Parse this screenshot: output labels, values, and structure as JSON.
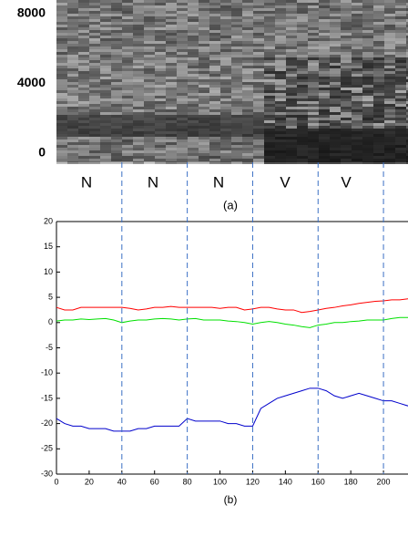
{
  "chart_data": [
    {
      "type": "spectrogram",
      "ylim": [
        0,
        8000
      ],
      "yticks": [
        0,
        4000,
        8000
      ],
      "categories": [
        "N",
        "N",
        "N",
        "V",
        "V"
      ],
      "caption": "(a)"
    },
    {
      "type": "line",
      "caption": "(b)",
      "xlim": [
        0,
        215
      ],
      "ylim": [
        -30,
        20
      ],
      "xticks": [
        0,
        20,
        40,
        60,
        80,
        100,
        120,
        140,
        160,
        180,
        200
      ],
      "yticks": [
        -30,
        -25,
        -20,
        -15,
        -10,
        -5,
        0,
        5,
        10,
        15,
        20
      ],
      "vlines": [
        40,
        80,
        120,
        160,
        200
      ],
      "x": [
        0,
        5,
        10,
        15,
        20,
        25,
        30,
        35,
        40,
        45,
        50,
        55,
        60,
        65,
        70,
        75,
        80,
        85,
        90,
        95,
        100,
        105,
        110,
        115,
        120,
        125,
        130,
        135,
        140,
        145,
        150,
        155,
        160,
        165,
        170,
        175,
        180,
        185,
        190,
        195,
        200,
        205,
        210,
        215
      ],
      "series": [
        {
          "color": "#ff0000",
          "values": [
            3,
            2.5,
            2.5,
            3,
            3,
            3,
            3,
            3,
            3,
            2.8,
            2.5,
            2.7,
            3,
            3,
            3.2,
            3,
            3,
            3,
            3,
            3,
            2.8,
            3,
            3,
            2.5,
            2.7,
            3,
            3,
            2.7,
            2.5,
            2.5,
            2,
            2.2,
            2.5,
            2.8,
            3,
            3.3,
            3.5,
            3.8,
            4,
            4.2,
            4.3,
            4.5,
            4.5,
            4.7
          ]
        },
        {
          "color": "#00e000",
          "values": [
            0.3,
            0.5,
            0.5,
            0.7,
            0.6,
            0.7,
            0.8,
            0.5,
            0,
            0.3,
            0.5,
            0.5,
            0.7,
            0.8,
            0.7,
            0.5,
            0.7,
            0.8,
            0.5,
            0.5,
            0.5,
            0.3,
            0.2,
            0,
            -0.3,
            0,
            0.2,
            0,
            -0.3,
            -0.5,
            -0.8,
            -1,
            -0.5,
            -0.3,
            0,
            0,
            0.2,
            0.3,
            0.5,
            0.5,
            0.5,
            0.8,
            1,
            1
          ]
        },
        {
          "color": "#0000cc",
          "values": [
            -19,
            -20,
            -20.5,
            -20.5,
            -21,
            -21,
            -21,
            -21.5,
            -21.5,
            -21.5,
            -21,
            -21,
            -20.5,
            -20.5,
            -20.5,
            -20.5,
            -19,
            -19.5,
            -19.5,
            -19.5,
            -19.5,
            -20,
            -20,
            -20.5,
            -20.5,
            -17,
            -16,
            -15,
            -14.5,
            -14,
            -13.5,
            -13,
            -13,
            -13.5,
            -14.5,
            -15,
            -14.5,
            -14,
            -14.5,
            -15,
            -15.5,
            -15.5,
            -16,
            -16.5
          ]
        }
      ]
    }
  ]
}
